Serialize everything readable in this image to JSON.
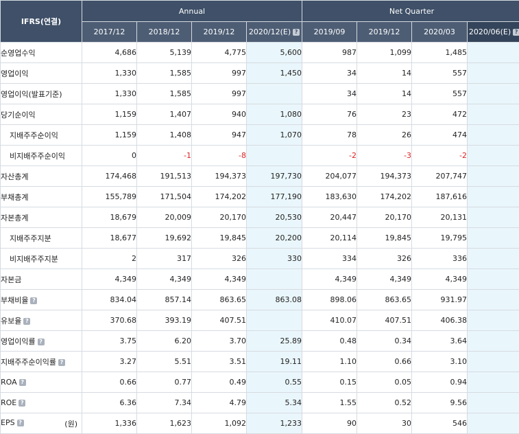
{
  "table": {
    "corner_label": "IFRS(연결)",
    "groups": [
      {
        "label": "Annual"
      },
      {
        "label": "Net Quarter"
      }
    ],
    "periods": [
      {
        "label": "2017/12",
        "estimate": false,
        "has_info": false
      },
      {
        "label": "2018/12",
        "estimate": false,
        "has_info": false
      },
      {
        "label": "2019/12",
        "estimate": false,
        "has_info": false
      },
      {
        "label": "2020/12(E)",
        "estimate": true,
        "has_info": true
      },
      {
        "label": "2019/09",
        "estimate": false,
        "has_info": false
      },
      {
        "label": "2019/12",
        "estimate": false,
        "has_info": false
      },
      {
        "label": "2020/03",
        "estimate": false,
        "has_info": false
      },
      {
        "label": "2020/06(E)",
        "estimate": true,
        "has_info": true
      }
    ],
    "rows": [
      {
        "label": "순영업수익",
        "indent": false,
        "info": false,
        "unit": "",
        "values": [
          "4,686",
          "5,139",
          "4,775",
          "5,600",
          "987",
          "1,099",
          "1,485",
          ""
        ]
      },
      {
        "label": "영업이익",
        "indent": false,
        "info": false,
        "unit": "",
        "values": [
          "1,330",
          "1,585",
          "997",
          "1,450",
          "34",
          "14",
          "557",
          ""
        ]
      },
      {
        "label": "영업이익(발표기준)",
        "indent": false,
        "info": false,
        "unit": "",
        "values": [
          "1,330",
          "1,585",
          "997",
          "",
          "34",
          "14",
          "557",
          ""
        ]
      },
      {
        "label": "당기순이익",
        "indent": false,
        "info": false,
        "unit": "",
        "values": [
          "1,159",
          "1,407",
          "940",
          "1,080",
          "76",
          "23",
          "472",
          ""
        ]
      },
      {
        "label": "지배주주순이익",
        "indent": true,
        "info": false,
        "unit": "",
        "values": [
          "1,159",
          "1,408",
          "947",
          "1,070",
          "78",
          "26",
          "474",
          ""
        ]
      },
      {
        "label": "비지배주주순이익",
        "indent": true,
        "info": false,
        "unit": "",
        "values": [
          "0",
          "-1",
          "-8",
          "",
          "-2",
          "-3",
          "-2",
          ""
        ]
      },
      {
        "label": "자산총계",
        "indent": false,
        "info": false,
        "unit": "",
        "values": [
          "174,468",
          "191,513",
          "194,373",
          "197,730",
          "204,077",
          "194,373",
          "207,747",
          ""
        ]
      },
      {
        "label": "부채총계",
        "indent": false,
        "info": false,
        "unit": "",
        "values": [
          "155,789",
          "171,504",
          "174,202",
          "177,190",
          "183,630",
          "174,202",
          "187,616",
          ""
        ]
      },
      {
        "label": "자본총계",
        "indent": false,
        "info": false,
        "unit": "",
        "values": [
          "18,679",
          "20,009",
          "20,170",
          "20,530",
          "20,447",
          "20,170",
          "20,131",
          ""
        ]
      },
      {
        "label": "지배주주지분",
        "indent": true,
        "info": false,
        "unit": "",
        "values": [
          "18,677",
          "19,692",
          "19,845",
          "20,200",
          "20,114",
          "19,845",
          "19,795",
          ""
        ]
      },
      {
        "label": "비지배주주지분",
        "indent": true,
        "info": false,
        "unit": "",
        "values": [
          "2",
          "317",
          "326",
          "330",
          "334",
          "326",
          "336",
          ""
        ]
      },
      {
        "label": "자본금",
        "indent": false,
        "info": false,
        "unit": "",
        "values": [
          "4,349",
          "4,349",
          "4,349",
          "",
          "4,349",
          "4,349",
          "4,349",
          ""
        ]
      },
      {
        "label": "부채비율",
        "indent": false,
        "info": true,
        "unit": "",
        "values": [
          "834.04",
          "857.14",
          "863.65",
          "863.08",
          "898.06",
          "863.65",
          "931.97",
          ""
        ]
      },
      {
        "label": "유보율",
        "indent": false,
        "info": true,
        "unit": "",
        "values": [
          "370.68",
          "393.19",
          "407.51",
          "",
          "410.07",
          "407.51",
          "406.38",
          ""
        ]
      },
      {
        "label": "영업이익률",
        "indent": false,
        "info": true,
        "unit": "",
        "values": [
          "3.75",
          "6.20",
          "3.70",
          "25.89",
          "0.48",
          "0.34",
          "3.64",
          ""
        ]
      },
      {
        "label": "지배주주순이익률",
        "indent": false,
        "info": true,
        "unit": "",
        "values": [
          "3.27",
          "5.51",
          "3.51",
          "19.11",
          "1.10",
          "0.66",
          "3.10",
          ""
        ]
      },
      {
        "label": "ROA",
        "indent": false,
        "info": true,
        "unit": "",
        "values": [
          "0.66",
          "0.77",
          "0.49",
          "0.55",
          "0.15",
          "0.05",
          "0.94",
          ""
        ]
      },
      {
        "label": "ROE",
        "indent": false,
        "info": true,
        "unit": "",
        "values": [
          "6.36",
          "7.34",
          "4.79",
          "5.34",
          "1.55",
          "0.52",
          "9.56",
          ""
        ]
      },
      {
        "label": "EPS",
        "indent": false,
        "info": true,
        "unit": "(원)",
        "values": [
          "1,336",
          "1,623",
          "1,092",
          "1,233",
          "90",
          "30",
          "546",
          ""
        ]
      }
    ],
    "info_icon_glyph": "?",
    "colors": {
      "header_bg": "#3f5068",
      "estimate_bg": "#e9f6fb",
      "negative_text": "#dd2222"
    }
  }
}
